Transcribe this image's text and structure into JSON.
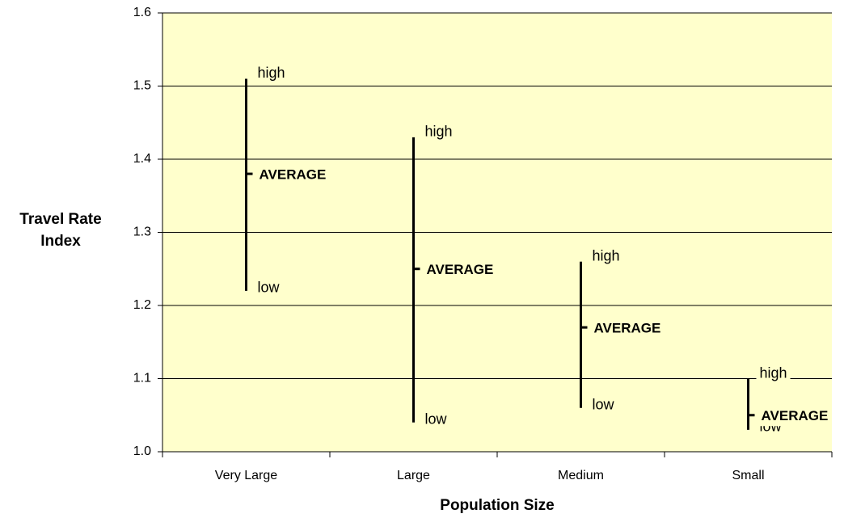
{
  "chart_data": {
    "type": "stock",
    "x_label": "Population Size",
    "y_label": "Travel Rate Index",
    "categories": [
      "Very Large",
      "Large",
      "Medium",
      "Small"
    ],
    "series": [
      {
        "name": "high",
        "values": [
          1.51,
          1.43,
          1.26,
          1.1
        ]
      },
      {
        "name": "low",
        "values": [
          1.22,
          1.04,
          1.06,
          1.03
        ]
      },
      {
        "name": "AVERAGE",
        "values": [
          1.38,
          1.25,
          1.17,
          1.05
        ]
      }
    ],
    "color": "#000000",
    "background": "#ffffcc",
    "ylim": [
      1.0,
      1.6
    ],
    "yticks": [
      {
        "value": 1.0,
        "label": "1.0"
      },
      1.1,
      1.2,
      1.3,
      1.4,
      1.5,
      1.6
    ],
    "grid": true
  }
}
